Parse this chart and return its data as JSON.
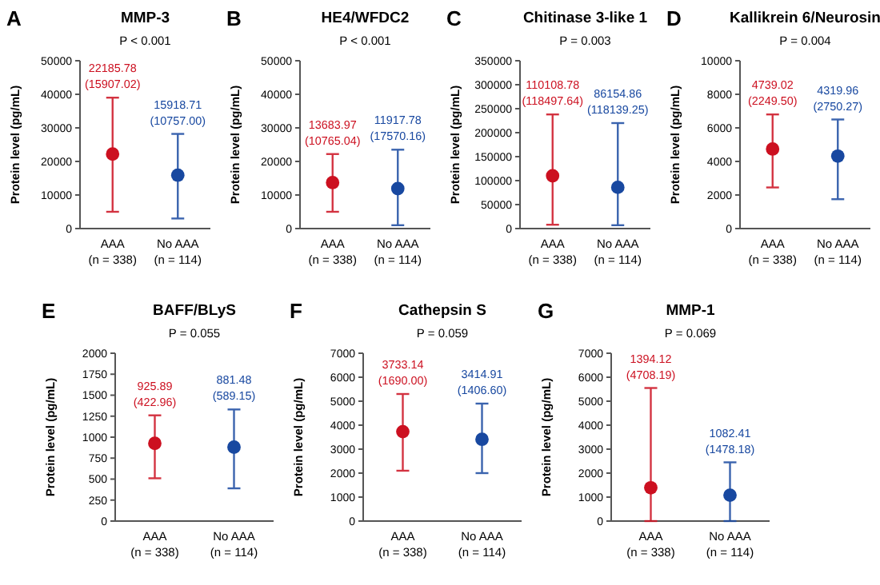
{
  "chart_data": [
    {
      "type": "scatter",
      "annotations": [
        "A",
        "22185.78\n(15907.02)",
        "15918.71\n(10757.00)"
      ],
      "title": "MMP-3",
      "subtitle": "P < 0.001",
      "ylabel": "Protein level (pg/mL)",
      "categories": [
        "AAA\n(n = 338)",
        "No AAA\n(n = 114)"
      ],
      "values": [
        22200,
        15900
      ],
      "errors": [
        [
          5000,
          39000
        ],
        [
          3000,
          28200
        ]
      ],
      "colors": [
        "#cc1020",
        "#1848a0"
      ],
      "marker": "circle",
      "ylim": [
        0,
        50000
      ],
      "yticks": [
        0,
        10000,
        20000,
        30000,
        40000,
        50000
      ]
    },
    {
      "type": "scatter",
      "annotations": [
        "B",
        "13683.97\n(10765.04)",
        "11917.78\n(17570.16)"
      ],
      "title": "HE4/WFDC2",
      "subtitle": "P < 0.001",
      "ylabel": "Protein level (pg/mL)",
      "categories": [
        "AAA\n(n = 338)",
        "No AAA\n(n = 114)"
      ],
      "values": [
        13700,
        11900
      ],
      "errors": [
        [
          5000,
          22200
        ],
        [
          1000,
          23500
        ]
      ],
      "colors": [
        "#cc1020",
        "#1848a0"
      ],
      "marker": "circle",
      "ylim": [
        0,
        50000
      ],
      "yticks": [
        0,
        10000,
        20000,
        30000,
        40000,
        50000
      ]
    },
    {
      "type": "scatter",
      "annotations": [
        "C",
        "110108.78\n(118497.64)",
        "86154.86\n(118139.25)"
      ],
      "title": "Chitinase 3-like 1",
      "subtitle": "P = 0.003",
      "ylabel": "Protein level (pg/mL)",
      "categories": [
        "AAA\n(n = 338)",
        "No AAA\n(n = 114)"
      ],
      "values": [
        110000,
        86000
      ],
      "errors": [
        [
          8000,
          238000
        ],
        [
          7000,
          220000
        ]
      ],
      "colors": [
        "#cc1020",
        "#1848a0"
      ],
      "marker": "circle",
      "ylim": [
        0,
        350000
      ],
      "yticks": [
        0,
        50000,
        100000,
        150000,
        200000,
        250000,
        300000,
        350000
      ]
    },
    {
      "type": "scatter",
      "annotations": [
        "D",
        "4739.02\n(2249.50)",
        "4319.96\n(2750.27)"
      ],
      "title": "Kallikrein 6/Neurosin",
      "subtitle": "P = 0.004",
      "ylabel": "Protein level (pg/mL)",
      "categories": [
        "AAA\n(n = 338)",
        "No AAA\n(n = 114)"
      ],
      "values": [
        4740,
        4320
      ],
      "errors": [
        [
          2450,
          6800
        ],
        [
          1750,
          6500
        ]
      ],
      "colors": [
        "#cc1020",
        "#1848a0"
      ],
      "marker": "circle",
      "ylim": [
        0,
        10000
      ],
      "yticks": [
        0,
        2000,
        4000,
        6000,
        8000,
        10000
      ]
    },
    {
      "type": "scatter",
      "annotations": [
        "E",
        "925.89\n(422.96)",
        "881.48\n(589.15)"
      ],
      "title": "BAFF/BLyS",
      "subtitle": "P = 0.055",
      "ylabel": "Protein level (pg/mL)",
      "categories": [
        "AAA\n(n = 338)",
        "No AAA\n(n = 114)"
      ],
      "values": [
        926,
        881
      ],
      "errors": [
        [
          510,
          1260
        ],
        [
          390,
          1330
        ]
      ],
      "colors": [
        "#cc1020",
        "#1848a0"
      ],
      "marker": "circle",
      "ylim": [
        0,
        2000
      ],
      "yticks": [
        0,
        250,
        500,
        750,
        1000,
        1250,
        1500,
        1750,
        2000
      ]
    },
    {
      "type": "scatter",
      "annotations": [
        "F",
        "3733.14\n(1690.00)",
        "3414.91\n(1406.60)"
      ],
      "title": "Cathepsin S",
      "subtitle": "P = 0.059",
      "ylabel": "Protein level (pg/mL)",
      "categories": [
        "AAA\n(n = 338)",
        "No AAA\n(n = 114)"
      ],
      "values": [
        3730,
        3410
      ],
      "errors": [
        [
          2100,
          5300
        ],
        [
          2000,
          4900
        ]
      ],
      "colors": [
        "#cc1020",
        "#1848a0"
      ],
      "marker": "circle",
      "ylim": [
        0,
        7000
      ],
      "yticks": [
        0,
        1000,
        2000,
        3000,
        4000,
        5000,
        6000,
        7000
      ]
    },
    {
      "type": "scatter",
      "annotations": [
        "G",
        "1394.12\n(4708.19)",
        "1082.41\n(1478.18)"
      ],
      "title": "MMP-1",
      "subtitle": "P = 0.069",
      "ylabel": "Protein level (pg/mL)",
      "categories": [
        "AAA\n(n = 338)",
        "No AAA\n(n = 114)"
      ],
      "values": [
        1390,
        1080
      ],
      "errors": [
        [
          0,
          5550
        ],
        [
          0,
          2450
        ]
      ],
      "colors": [
        "#cc1020",
        "#1848a0"
      ],
      "marker": "circle",
      "ylim": [
        0,
        7000
      ],
      "yticks": [
        0,
        1000,
        2000,
        3000,
        4000,
        5000,
        6000,
        7000
      ]
    }
  ]
}
